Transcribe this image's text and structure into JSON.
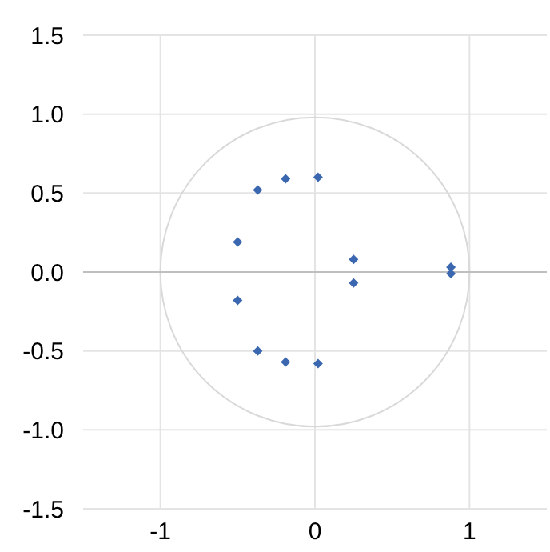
{
  "chart_data": {
    "type": "scatter",
    "xlim": [
      -1.5,
      1.5
    ],
    "ylim": [
      -1.5,
      1.5
    ],
    "xticks": [
      -1,
      0,
      1
    ],
    "yticks": [
      {
        "value": -1.5,
        "label": "-1.5"
      },
      {
        "value": -1,
        "label": "-1.0"
      },
      {
        "value": -0.5,
        "label": "-0.5"
      },
      {
        "value": 0,
        "label": "0.0"
      },
      {
        "value": 0.5,
        "label": "0.5"
      },
      {
        "value": 1,
        "label": "1.0"
      },
      {
        "value": 1.5,
        "label": "1.5"
      }
    ],
    "grid": true,
    "marker": "diamond",
    "series": [
      {
        "color": "#3a67b0",
        "x": [
          0.02,
          -0.19,
          -0.37,
          -0.5,
          -0.5,
          -0.37,
          -0.19,
          0.02,
          0.25,
          0.25,
          0.88,
          0.88
        ],
        "values": [
          0.6,
          0.59,
          0.52,
          0.19,
          -0.18,
          -0.5,
          -0.57,
          -0.58,
          0.08,
          -0.07,
          0.03,
          -0.01
        ]
      }
    ]
  }
}
